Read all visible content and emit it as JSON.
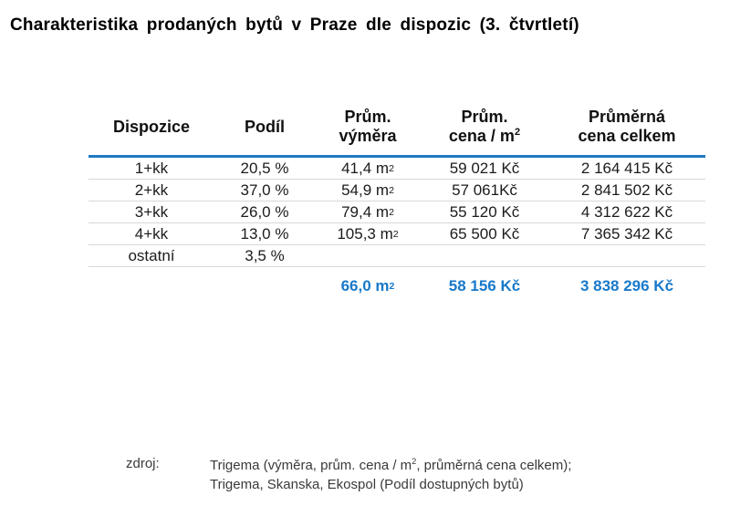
{
  "title": "Charakteristika prodaných bytů v Praze dle dispozic (3. čtvrtletí)",
  "colors": {
    "accent_blue_line": "#1e7ac4",
    "summary_blue": "#1879c9",
    "row_divider": "#d8d8d8",
    "body_text": "#1b1b1b",
    "footer_text": "#3a3a3a"
  },
  "chart_data": {
    "type": "table",
    "title": "Charakteristika prodaných bytů v Praze dle dispozic (3. čtvrtletí)",
    "headers": [
      [
        "Dispozice",
        ""
      ],
      [
        "Podíl",
        ""
      ],
      [
        "Prům.",
        "výměra"
      ],
      [
        "Prům.",
        "cena / m²"
      ],
      [
        "Průměrná",
        "cena celkem"
      ]
    ],
    "rows": [
      [
        "1+kk",
        "20,5 %",
        "41,4 m²",
        "59 021 Kč",
        "2 164 415 Kč"
      ],
      [
        "2+kk",
        "37,0 %",
        "54,9 m²",
        "57 061Kč",
        "2 841 502 Kč"
      ],
      [
        "3+kk",
        "26,0 %",
        "79,4 m²",
        "55 120 Kč",
        "4 312 622 Kč"
      ],
      [
        "4+kk",
        "13,0 %",
        "105,3 m²",
        "65 500 Kč",
        "7 365 342 Kč"
      ],
      [
        "ostatní",
        "3,5 %",
        "",
        "",
        ""
      ]
    ],
    "summary": [
      "",
      "",
      "66,0 m²",
      "58 156 Kč",
      "3 838 296 Kč"
    ]
  },
  "footer": {
    "label": "zdroj:",
    "line1": "Trigema (výměra, prům. cena / m², průměrná cena celkem);",
    "line2": "Trigema, Skanska, Ekospol (Podíl dostupných bytů)"
  }
}
